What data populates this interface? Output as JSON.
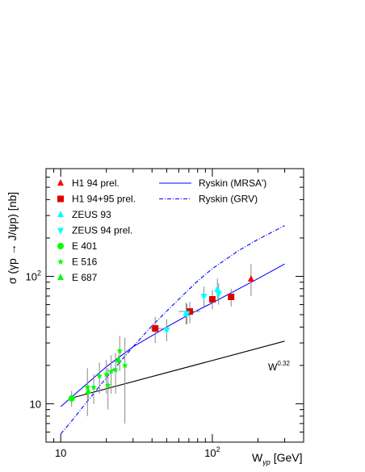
{
  "chart_data": {
    "type": "scatter",
    "title": "",
    "xlabel_main": "W",
    "xlabel_sub": "γp",
    "xlabel_unit": "[GeV]",
    "ylabel": "σ (γp → J/ψp) [nb]",
    "x_scale": "log",
    "y_scale": "log",
    "xlim": [
      8,
      400
    ],
    "ylim": [
      5,
      700
    ],
    "x_ticks": [
      {
        "value": 10,
        "label": "10"
      },
      {
        "value": 100,
        "label": "10",
        "exp": "2"
      }
    ],
    "y_ticks": [
      {
        "value": 10,
        "label": "10"
      },
      {
        "value": 100,
        "label": "10",
        "exp": "2"
      }
    ],
    "grid": false,
    "legend_placement": "top-left",
    "series": [
      {
        "name": "H1 94 prel.",
        "marker": "triangle-up",
        "color": "#ff0000",
        "points": [
          {
            "x": 180,
            "y": 95,
            "ylo": 70,
            "yhi": 125
          }
        ]
      },
      {
        "name": "H1 94+95 prel.",
        "marker": "square",
        "color": "#dd0000",
        "points": [
          {
            "x": 42,
            "y": 39,
            "ylo": 30,
            "yhi": 48,
            "xlo": 38,
            "xhi": 47
          },
          {
            "x": 71,
            "y": 53,
            "ylo": 43,
            "yhi": 63,
            "xlo": 60,
            "xhi": 83
          },
          {
            "x": 100,
            "y": 66,
            "ylo": 55,
            "yhi": 78
          },
          {
            "x": 133,
            "y": 69,
            "ylo": 58,
            "yhi": 80
          }
        ]
      },
      {
        "name": "ZEUS 93",
        "marker": "triangle-up",
        "color": "#00ffff",
        "points": [
          {
            "x": 67,
            "y": 51,
            "ylo": 42,
            "yhi": 62
          },
          {
            "x": 108,
            "y": 79,
            "ylo": 64,
            "yhi": 96
          }
        ]
      },
      {
        "name": "ZEUS 94 prel.",
        "marker": "triangle-down",
        "color": "#00ffff",
        "points": [
          {
            "x": 50,
            "y": 38,
            "ylo": 31,
            "yhi": 46
          },
          {
            "x": 68,
            "y": 51,
            "ylo": 42,
            "yhi": 61
          },
          {
            "x": 88,
            "y": 70,
            "ylo": 58,
            "yhi": 83
          },
          {
            "x": 110,
            "y": 73,
            "ylo": 60,
            "yhi": 88
          }
        ]
      },
      {
        "name": "E 401",
        "marker": "circle",
        "color": "#00ff00",
        "points": [
          {
            "x": 11.8,
            "y": 11,
            "ylo": 9.5,
            "yhi": 12.6
          }
        ]
      },
      {
        "name": "E 516",
        "marker": "star",
        "color": "#00ff00",
        "points": [
          {
            "x": 15,
            "y": 13.5,
            "ylo": 8,
            "yhi": 19
          },
          {
            "x": 16.5,
            "y": 13.5,
            "ylo": 10,
            "yhi": 17
          },
          {
            "x": 18,
            "y": 16.5,
            "ylo": 12,
            "yhi": 21
          },
          {
            "x": 20,
            "y": 17,
            "ylo": 12,
            "yhi": 22
          },
          {
            "x": 20.5,
            "y": 14,
            "ylo": 9,
            "yhi": 19
          },
          {
            "x": 21.5,
            "y": 18,
            "ylo": 12,
            "yhi": 24
          },
          {
            "x": 23,
            "y": 18.5,
            "ylo": 12,
            "yhi": 25
          },
          {
            "x": 24.5,
            "y": 26,
            "ylo": 18,
            "yhi": 34
          },
          {
            "x": 26.5,
            "y": 20,
            "ylo": 7,
            "yhi": 33
          }
        ]
      },
      {
        "name": "E 687",
        "marker": "triangle-up",
        "color": "#00ff00",
        "points": [
          {
            "x": 15.2,
            "y": 12.5,
            "ylo": 11,
            "yhi": 14
          },
          {
            "x": 24,
            "y": 22,
            "ylo": 20,
            "yhi": 24
          }
        ]
      }
    ],
    "curves": [
      {
        "name": "Ryskin (MRSA')",
        "style": "solid",
        "color": "#0000ff",
        "x": [
          10,
          15,
          20,
          30,
          50,
          70,
          100,
          150,
          200,
          300
        ],
        "y": [
          9.5,
          14.5,
          19.5,
          28,
          40,
          50,
          62,
          80,
          96,
          125
        ]
      },
      {
        "name": "Ryskin (GRV)",
        "style": "dashdot",
        "color": "#0000ff",
        "x": [
          10,
          12,
          15,
          20,
          30,
          40,
          60,
          80,
          100,
          150,
          200,
          300
        ],
        "y": [
          5.8,
          7.5,
          10.5,
          16,
          28,
          41,
          66,
          92,
          115,
          160,
          195,
          250
        ]
      },
      {
        "name": "",
        "style": "solid",
        "color": "#000000",
        "x": [
          11.5,
          300
        ],
        "y": [
          11,
          31
        ]
      }
    ],
    "annotation": {
      "text": "W",
      "sup": "0.32"
    }
  },
  "colors": {
    "axis": "#000000",
    "error_bar": "#888888"
  }
}
